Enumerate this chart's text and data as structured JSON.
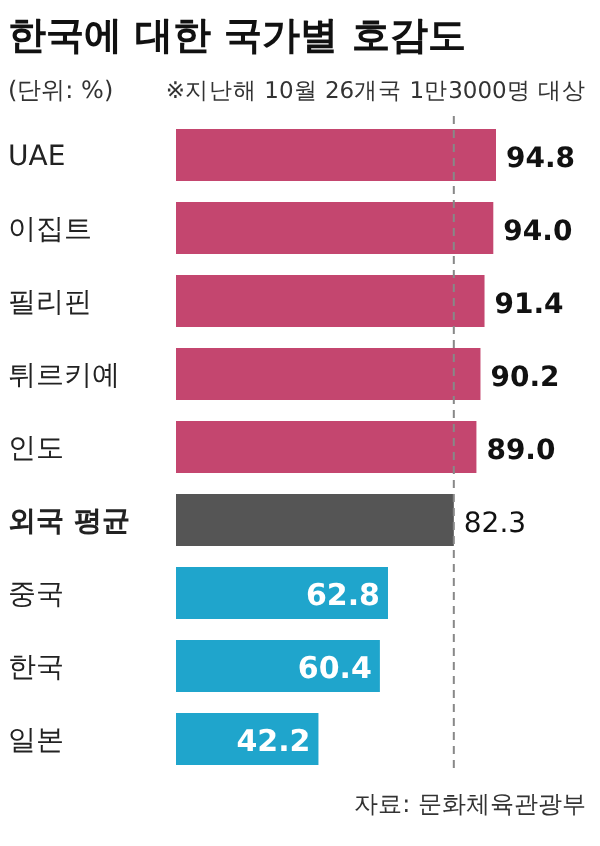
{
  "chart_data": {
    "type": "bar",
    "orientation": "horizontal",
    "title": "한국에 대한 국가별 호감도",
    "subtitle": "(단위: %)",
    "annotations": [
      "※지난해 10월 26개국 1만3000명 대상",
      "자료: 문화체육관광부"
    ],
    "categories": [
      "UAE",
      "이집트",
      "필리핀",
      "튀르키예",
      "인도",
      "외국 평균",
      "중국",
      "한국",
      "일본"
    ],
    "values": [
      94.8,
      94.0,
      91.4,
      90.2,
      89.0,
      82.3,
      62.8,
      60.4,
      42.2
    ],
    "colors": [
      "#c4466f",
      "#c4466f",
      "#c4466f",
      "#c4466f",
      "#c4466f",
      "#555555",
      "#1fa5cc",
      "#1fa5cc",
      "#1fa5cc"
    ],
    "ref_lines": [
      {
        "axis": "x",
        "value": 82.3,
        "color": "#888888",
        "line_style": "dashed"
      }
    ],
    "value_labels": [
      "94.8",
      "94.0",
      "91.4",
      "90.2",
      "89.0",
      "82.3",
      "62.8",
      "60.4",
      "42.2"
    ]
  }
}
